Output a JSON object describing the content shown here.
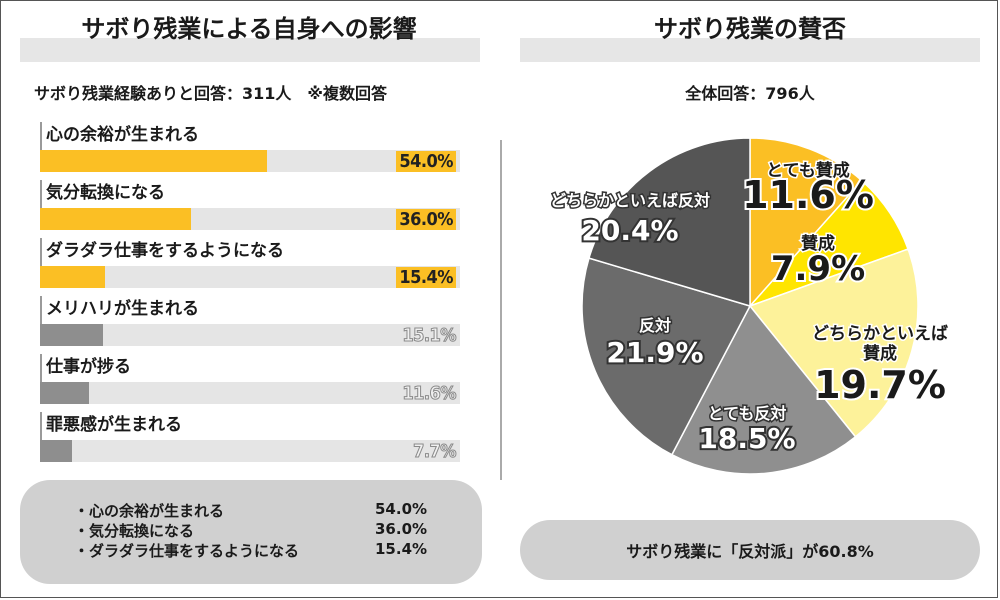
{
  "left": {
    "title": "サボり残業による自身への影響",
    "subtitle": "サボり残業経験ありと回答：311人　※複数回答",
    "summary": [
      {
        "label": "・心の余裕が生まれる",
        "value": "54.0%"
      },
      {
        "label": "・気分転換になる",
        "value": "36.0%"
      },
      {
        "label": "・ダラダラ仕事をするようになる",
        "value": "15.4%"
      }
    ]
  },
  "right": {
    "title": "サボり残業の賛否",
    "subtitle": "全体回答：796人",
    "result": "サボり残業に「反対派」が60.8%"
  },
  "colors": {
    "highlight": "#fbbf24",
    "muted": "#8e8e8e",
    "track": "#e5e5e5"
  },
  "chart_data": [
    {
      "type": "bar",
      "orientation": "horizontal",
      "title": "サボり残業による自身への影響",
      "categories": [
        "心の余裕が生まれる",
        "気分転換になる",
        "ダラダラ仕事をするようになる",
        "メリハリが生まれる",
        "仕事が捗る",
        "罪悪感が生まれる"
      ],
      "values": [
        54.0,
        36.0,
        15.4,
        15.1,
        11.6,
        7.7
      ],
      "value_labels": [
        "54.0%",
        "36.0%",
        "15.4%",
        "15.1%",
        "11.6%",
        "7.7%"
      ],
      "highlighted": [
        true,
        true,
        true,
        false,
        false,
        false
      ],
      "xlim": [
        0,
        100
      ]
    },
    {
      "type": "pie",
      "title": "サボり残業の賛否",
      "slices": [
        {
          "label": "とても賛成",
          "value": 11.6,
          "value_label": "11.6%",
          "color": "#fbbf24"
        },
        {
          "label": "賛成",
          "value": 7.9,
          "value_label": "7.9%",
          "color": "#ffe500"
        },
        {
          "label": "どちらかといえば賛成",
          "value": 19.7,
          "value_label": "19.7%",
          "color": "#fdf29a"
        },
        {
          "label": "とても反対",
          "value": 18.5,
          "value_label": "18.5%",
          "color": "#8f8f8f"
        },
        {
          "label": "反対",
          "value": 21.9,
          "value_label": "21.9%",
          "color": "#6b6b6b"
        },
        {
          "label": "どちらかといえば反対",
          "value": 20.4,
          "value_label": "20.4%",
          "color": "#555555"
        }
      ],
      "start": "12 o'clock",
      "direction": "clockwise"
    }
  ]
}
